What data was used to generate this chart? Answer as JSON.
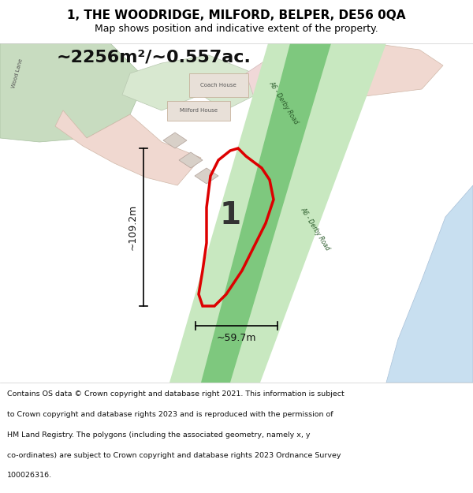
{
  "title": "1, THE WOODRIDGE, MILFORD, BELPER, DE56 0QA",
  "subtitle": "Map shows position and indicative extent of the property.",
  "area_text": "~2256m²/~0.557ac.",
  "width_text": "~59.7m",
  "height_text": "~109.2m",
  "plot_number": "1",
  "footer_lines": [
    "Contains OS data © Crown copyright and database right 2021. This information is subject",
    "to Crown copyright and database rights 2023 and is reproduced with the permission of",
    "HM Land Registry. The polygons (including the associated geometry, namely x, y",
    "co-ordinates) are subject to Crown copyright and database rights 2023 Ordnance Survey",
    "100026316."
  ],
  "plot_outline": "#dd0000",
  "road_green": "#7ec87e",
  "road_green_light": "#c8e8c0"
}
